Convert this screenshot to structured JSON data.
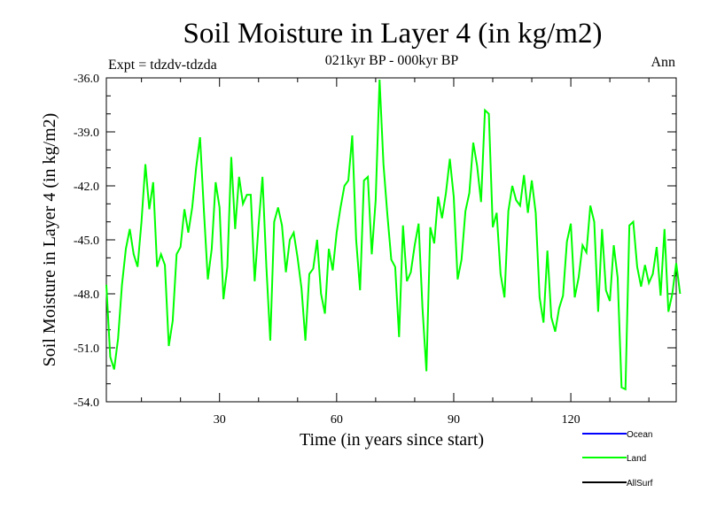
{
  "chart_data": {
    "type": "line",
    "title": "Soil Moisture in Layer 4 (in kg/m2)",
    "subtitle": "021kyr BP - 000kyr BP",
    "left_note": "Expt = tdzdv-tdzda",
    "right_note": "Ann",
    "xlabel": "Time (in years since start)",
    "ylabel": "Soil Moisture in Layer 4 (in kg/m2)",
    "xlim": [
      1,
      147
    ],
    "ylim": [
      -54,
      -36
    ],
    "x_ticks": [
      30,
      60,
      90,
      120
    ],
    "x_tick_labels": [
      "30",
      "60",
      "90",
      "120"
    ],
    "y_ticks": [
      -54,
      -51,
      -48,
      -45,
      -42,
      -39,
      -36
    ],
    "y_tick_labels": [
      "-54.0",
      "-51.0",
      "-48.0",
      "-45.0",
      "-42.0",
      "-39.0",
      "-36.0"
    ],
    "legend": [
      {
        "name": "Ocean",
        "color": "#0000ff"
      },
      {
        "name": "Land",
        "color": "#00ff00"
      },
      {
        "name": "AllSurf",
        "color": "#000000"
      }
    ],
    "series": [
      {
        "name": "Land",
        "color": "#00ff00",
        "x_start": 1,
        "values": [
          -47.5,
          -51.5,
          -52.2,
          -50.5,
          -47.5,
          -45.5,
          -44.4,
          -45.8,
          -46.5,
          -44.0,
          -40.8,
          -43.3,
          -41.8,
          -46.5,
          -45.8,
          -46.4,
          -50.9,
          -49.5,
          -45.8,
          -45.4,
          -43.3,
          -44.6,
          -43.2,
          -41.0,
          -39.3,
          -43.4,
          -47.2,
          -45.5,
          -41.8,
          -43.2,
          -48.3,
          -46.5,
          -40.4,
          -44.4,
          -41.5,
          -43.0,
          -42.5,
          -42.5,
          -47.3,
          -44.2,
          -41.5,
          -46.5,
          -50.6,
          -44.0,
          -43.2,
          -44.2,
          -46.8,
          -45.0,
          -44.6,
          -46.0,
          -47.7,
          -50.6,
          -46.9,
          -46.6,
          -45.0,
          -48.0,
          -49.1,
          -45.5,
          -46.7,
          -44.6,
          -43.2,
          -42.0,
          -41.7,
          -39.2,
          -45.0,
          -47.8,
          -41.7,
          -41.5,
          -45.8,
          -42.8,
          -36.1,
          -40.8,
          -43.6,
          -46.1,
          -46.5,
          -50.4,
          -44.2,
          -47.3,
          -46.8,
          -45.3,
          -44.1,
          -48.8,
          -52.3,
          -44.3,
          -45.2,
          -42.6,
          -43.8,
          -42.4,
          -40.5,
          -42.6,
          -47.2,
          -46.1,
          -43.4,
          -42.4,
          -39.6,
          -40.9,
          -42.9,
          -37.8,
          -38.0,
          -44.3,
          -43.5,
          -46.9,
          -48.2,
          -43.4,
          -42.0,
          -42.8,
          -43.1,
          -41.4,
          -43.5,
          -41.7,
          -43.5,
          -48.2,
          -49.6,
          -45.6,
          -49.3,
          -50.1,
          -48.8,
          -48.1,
          -45.1,
          -44.1,
          -48.2,
          -47.1,
          -45.3,
          -45.7,
          -43.1,
          -44.0,
          -49.0,
          -44.4,
          -47.8,
          -48.4,
          -45.3,
          -47.1,
          -53.2,
          -53.3,
          -44.2,
          -44.0,
          -46.5,
          -47.6,
          -46.4,
          -47.4,
          -46.9,
          -45.4,
          -48.1,
          -44.4,
          -49.0,
          -48.0,
          -46.3,
          -48.0
        ]
      }
    ]
  }
}
